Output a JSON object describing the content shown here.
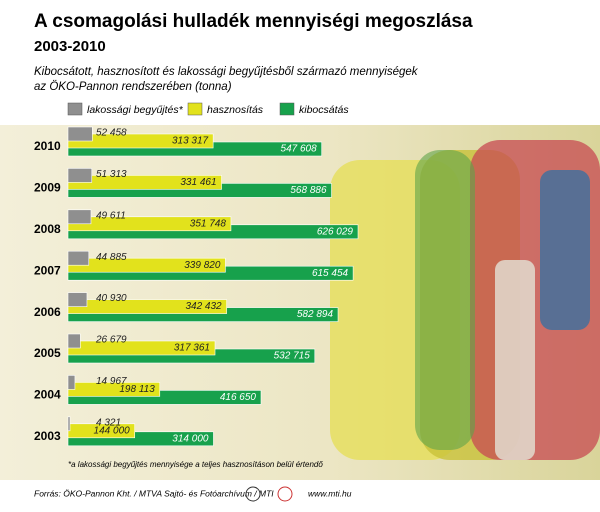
{
  "chart_data": {
    "type": "bar",
    "orientation": "horizontal",
    "title": "A csomagolási hulladék mennyiségi megoszlása",
    "subtitle": "2003-2010",
    "description": [
      "Kibocsátott, hasznosított és lakossági begyűjtésből származó mennyiségek",
      "az ÖKO-Pannon rendszerében (tonna)"
    ],
    "categories": [
      "2010",
      "2009",
      "2008",
      "2007",
      "2006",
      "2005",
      "2004",
      "2003"
    ],
    "series": [
      {
        "name": "lakossági begyűjtés*",
        "color": "#8f8f8f",
        "values": [
          52458,
          51313,
          49611,
          44885,
          40930,
          26679,
          14967,
          4321
        ],
        "value_labels": [
          "52 458",
          "51 313",
          "49 611",
          "44 885",
          "40 930",
          "26 679",
          "14 967",
          "4 321"
        ]
      },
      {
        "name": "hasznosítás",
        "color": "#e2e21c",
        "values": [
          313317,
          331461,
          351748,
          339820,
          342432,
          317361,
          198113,
          144000
        ],
        "value_labels": [
          "313 317",
          "331 461",
          "351 748",
          "339 820",
          "342 432",
          "317 361",
          "198 113",
          "144 000"
        ]
      },
      {
        "name": "kibocsátás",
        "color": "#17a14c",
        "values": [
          547608,
          568886,
          626029,
          615454,
          582894,
          532715,
          416650,
          314000
        ],
        "value_labels": [
          "547 608",
          "568 886",
          "626 029",
          "615 454",
          "582 894",
          "532 715",
          "416 650",
          "314 000"
        ]
      }
    ],
    "footnote": "*a lakossági begyűjtés mennyisége a teljes hasznosításon belül értendő",
    "source": "Forrás: ÖKO-Pannon Kht. / MTVA Sajtó- és Fotóarchívum / MTI",
    "website": "www.mti.hu"
  }
}
